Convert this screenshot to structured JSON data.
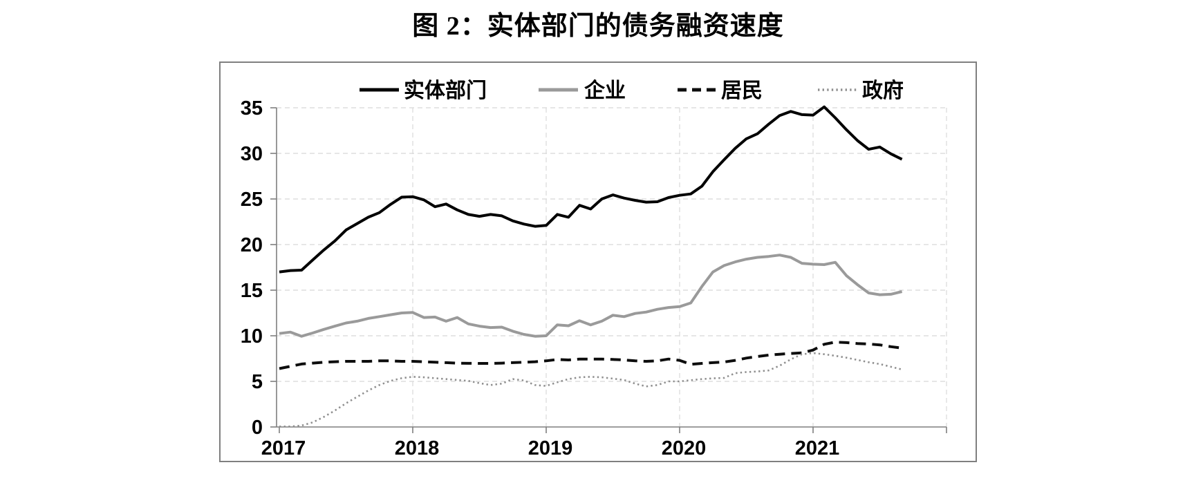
{
  "title": "图 2：实体部门的债务融资速度",
  "chart_data": {
    "type": "line",
    "title": "图 2：实体部门的债务融资速度",
    "x_start": "2017-01",
    "x_end": "2021-09",
    "x_frequency": "monthly",
    "x_tick_labels": [
      "2017",
      "2018",
      "2019",
      "2020",
      "2021"
    ],
    "ylim": [
      0,
      35
    ],
    "y_ticks": [
      0,
      5,
      10,
      15,
      20,
      25,
      30,
      35
    ],
    "grid": "dashed horizontal and vertical, light gray",
    "legend_position": "top inside plot, horizontal row",
    "frame_color": "#7f7f7f",
    "grid_color": "#d8d8d8",
    "series": [
      {
        "name": "实体部门",
        "style": "solid",
        "color": "#000000",
        "width": 4,
        "values": [
          17.0,
          17.15,
          17.2,
          18.3,
          19.4,
          20.4,
          21.6,
          22.3,
          23.0,
          23.5,
          24.4,
          25.2,
          25.25,
          24.9,
          24.15,
          24.45,
          23.8,
          23.3,
          23.1,
          23.3,
          23.15,
          22.6,
          22.25,
          22.0,
          22.1,
          23.3,
          23.0,
          24.3,
          23.9,
          25.0,
          25.45,
          25.1,
          24.85,
          24.65,
          24.7,
          25.15,
          25.4,
          25.55,
          26.4,
          28.0,
          29.3,
          30.55,
          31.6,
          32.15,
          33.2,
          34.15,
          34.6,
          34.25,
          34.2,
          35.1,
          33.9,
          32.6,
          31.4,
          30.45,
          30.7,
          29.95,
          29.35
        ]
      },
      {
        "name": "企业",
        "style": "solid",
        "color": "#9a9a9a",
        "width": 4,
        "values": [
          10.25,
          10.4,
          9.95,
          10.3,
          10.7,
          11.05,
          11.4,
          11.6,
          11.9,
          12.1,
          12.3,
          12.5,
          12.55,
          12.0,
          12.05,
          11.6,
          12.0,
          11.3,
          11.05,
          10.9,
          10.95,
          10.5,
          10.15,
          9.95,
          10.0,
          11.2,
          11.1,
          11.65,
          11.2,
          11.6,
          12.25,
          12.1,
          12.45,
          12.6,
          12.9,
          13.1,
          13.2,
          13.6,
          15.4,
          17.0,
          17.7,
          18.1,
          18.4,
          18.6,
          18.7,
          18.85,
          18.6,
          17.95,
          17.85,
          17.8,
          18.05,
          16.6,
          15.6,
          14.7,
          14.5,
          14.55,
          14.85
        ]
      },
      {
        "name": "居民",
        "style": "dashed",
        "color": "#0d0d0d",
        "width": 4,
        "values": [
          6.4,
          6.65,
          6.9,
          7.0,
          7.1,
          7.15,
          7.2,
          7.2,
          7.2,
          7.25,
          7.25,
          7.2,
          7.2,
          7.15,
          7.1,
          7.05,
          7.0,
          6.98,
          6.97,
          6.97,
          7.0,
          7.05,
          7.1,
          7.15,
          7.25,
          7.4,
          7.35,
          7.45,
          7.45,
          7.45,
          7.4,
          7.35,
          7.25,
          7.2,
          7.25,
          7.45,
          7.3,
          6.87,
          6.97,
          7.05,
          7.12,
          7.3,
          7.55,
          7.73,
          7.88,
          7.98,
          8.06,
          8.13,
          8.43,
          9.07,
          9.3,
          9.25,
          9.15,
          9.1,
          9.0,
          8.8,
          8.65
        ]
      },
      {
        "name": "政府",
        "style": "dotted",
        "color": "#8f8f8f",
        "width": 2.6,
        "values": [
          0.05,
          0.05,
          0.15,
          0.5,
          1.1,
          1.8,
          2.6,
          3.3,
          4.0,
          4.6,
          5.05,
          5.35,
          5.5,
          5.45,
          5.35,
          5.25,
          5.15,
          5.05,
          4.8,
          4.6,
          4.75,
          5.25,
          5.1,
          4.6,
          4.5,
          4.9,
          5.25,
          5.45,
          5.5,
          5.45,
          5.3,
          5.15,
          4.75,
          4.45,
          4.6,
          5.0,
          5.0,
          5.13,
          5.25,
          5.33,
          5.38,
          5.9,
          6.02,
          6.08,
          6.2,
          6.72,
          7.42,
          7.98,
          8.1,
          7.98,
          7.8,
          7.6,
          7.35,
          7.1,
          6.9,
          6.6,
          6.3
        ]
      }
    ]
  }
}
